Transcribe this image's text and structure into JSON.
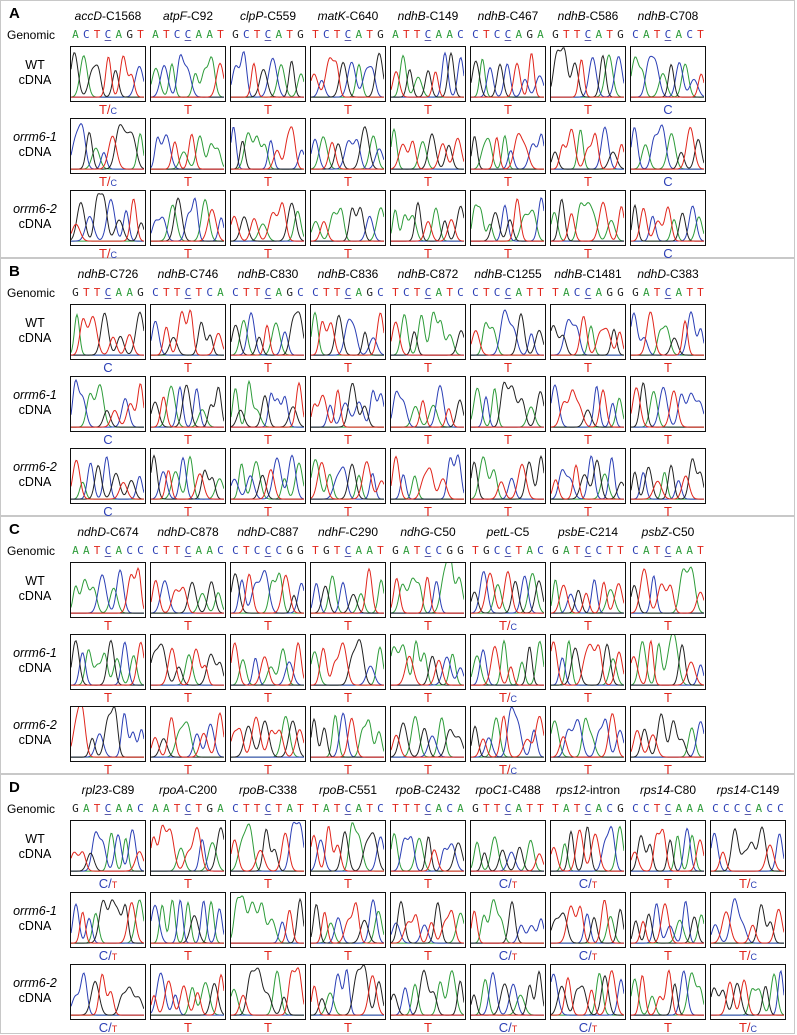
{
  "panels": [
    {
      "letter": "A",
      "genomic_label": "Genomic",
      "columns": [
        {
          "gene": "accD",
          "site": "-C1568",
          "genomic": [
            "A",
            "C",
            "T",
            "C",
            "A",
            "G",
            "T"
          ]
        },
        {
          "gene": "atpF",
          "site": "-C92",
          "genomic": [
            "A",
            "T",
            "C",
            "C",
            "A",
            "A",
            "T"
          ]
        },
        {
          "gene": "clpP",
          "site": "-C559",
          "genomic": [
            "G",
            "C",
            "T",
            "C",
            "A",
            "T",
            "G"
          ]
        },
        {
          "gene": "matK",
          "site": "-C640",
          "genomic": [
            "T",
            "C",
            "T",
            "C",
            "A",
            "T",
            "G"
          ]
        },
        {
          "gene": "ndhB",
          "site": "-C149",
          "genomic": [
            "A",
            "T",
            "T",
            "C",
            "A",
            "A",
            "C"
          ]
        },
        {
          "gene": "ndhB",
          "site": "-C467",
          "genomic": [
            "C",
            "T",
            "C",
            "C",
            "A",
            "G",
            "A"
          ]
        },
        {
          "gene": "ndhB",
          "site": "-C586",
          "genomic": [
            "G",
            "T",
            "T",
            "C",
            "A",
            "T",
            "G"
          ]
        },
        {
          "gene": "ndhB",
          "site": "-C708",
          "genomic": [
            "C",
            "A",
            "T",
            "C",
            "A",
            "C",
            "T"
          ]
        }
      ],
      "rows": [
        {
          "line": "WT",
          "sample": "cDNA",
          "calls": [
            "T/C",
            "T",
            "T",
            "T",
            "T",
            "T",
            "T",
            "C"
          ]
        },
        {
          "line": "orrm6-1",
          "sample": "cDNA",
          "calls": [
            "T/C",
            "T",
            "T",
            "T",
            "T",
            "T",
            "T",
            "C"
          ]
        },
        {
          "line": "orrm6-2",
          "sample": "cDNA",
          "calls": [
            "T/C",
            "T",
            "T",
            "T",
            "T",
            "T",
            "T",
            "C"
          ]
        }
      ]
    },
    {
      "letter": "B",
      "genomic_label": "Genomic",
      "columns": [
        {
          "gene": "ndhB",
          "site": "-C726",
          "genomic": [
            "G",
            "T",
            "T",
            "C",
            "A",
            "A",
            "G"
          ]
        },
        {
          "gene": "ndhB",
          "site": "-C746",
          "genomic": [
            "C",
            "T",
            "T",
            "C",
            "T",
            "C",
            "A"
          ]
        },
        {
          "gene": "ndhB",
          "site": "-C830",
          "genomic": [
            "C",
            "T",
            "T",
            "C",
            "A",
            "G",
            "C"
          ]
        },
        {
          "gene": "ndhB",
          "site": "-C836",
          "genomic": [
            "C",
            "T",
            "T",
            "C",
            "A",
            "G",
            "C"
          ]
        },
        {
          "gene": "ndhB",
          "site": "-C872",
          "genomic": [
            "T",
            "C",
            "T",
            "C",
            "A",
            "T",
            "C"
          ]
        },
        {
          "gene": "ndhB",
          "site": "-C1255",
          "genomic": [
            "C",
            "T",
            "C",
            "C",
            "A",
            "T",
            "T"
          ]
        },
        {
          "gene": "ndhB",
          "site": "-C1481",
          "genomic": [
            "T",
            "A",
            "C",
            "C",
            "A",
            "G",
            "G"
          ]
        },
        {
          "gene": "ndhD",
          "site": "-C383",
          "genomic": [
            "G",
            "A",
            "T",
            "C",
            "A",
            "T",
            "T"
          ]
        }
      ],
      "rows": [
        {
          "line": "WT",
          "sample": "cDNA",
          "calls": [
            "C",
            "T",
            "T",
            "T",
            "T",
            "T",
            "T",
            "T"
          ]
        },
        {
          "line": "orrm6-1",
          "sample": "cDNA",
          "calls": [
            "C",
            "T",
            "T",
            "T",
            "T",
            "T",
            "T",
            "T"
          ]
        },
        {
          "line": "orrm6-2",
          "sample": "cDNA",
          "calls": [
            "C",
            "T",
            "T",
            "T",
            "T",
            "T",
            "T",
            "T"
          ]
        }
      ]
    },
    {
      "letter": "C",
      "genomic_label": "Genomic",
      "columns": [
        {
          "gene": "ndhD",
          "site": "-C674",
          "genomic": [
            "A",
            "A",
            "T",
            "C",
            "A",
            "C",
            "C"
          ]
        },
        {
          "gene": "ndhD",
          "site": "-C878",
          "genomic": [
            "C",
            "T",
            "T",
            "C",
            "A",
            "A",
            "C"
          ]
        },
        {
          "gene": "ndhD",
          "site": "-C887",
          "genomic": [
            "C",
            "T",
            "C",
            "C",
            "C",
            "G",
            "G"
          ]
        },
        {
          "gene": "ndhF",
          "site": "-C290",
          "genomic": [
            "T",
            "G",
            "T",
            "C",
            "A",
            "A",
            "T"
          ]
        },
        {
          "gene": "ndhG",
          "site": "-C50",
          "genomic": [
            "G",
            "A",
            "T",
            "C",
            "C",
            "G",
            "G"
          ]
        },
        {
          "gene": "petL",
          "site": "-C5",
          "genomic": [
            "T",
            "G",
            "C",
            "C",
            "T",
            "A",
            "C"
          ]
        },
        {
          "gene": "psbE",
          "site": "-C214",
          "genomic": [
            "G",
            "A",
            "T",
            "C",
            "C",
            "T",
            "T"
          ]
        },
        {
          "gene": "psbZ",
          "site": "-C50",
          "genomic": [
            "C",
            "A",
            "T",
            "C",
            "A",
            "A",
            "T"
          ]
        }
      ],
      "rows": [
        {
          "line": "WT",
          "sample": "cDNA",
          "calls": [
            "T",
            "T",
            "T",
            "T",
            "T",
            "T/C",
            "T",
            "T"
          ]
        },
        {
          "line": "orrm6-1",
          "sample": "cDNA",
          "calls": [
            "T",
            "T",
            "T",
            "T",
            "T",
            "T/C",
            "T",
            "T"
          ]
        },
        {
          "line": "orrm6-2",
          "sample": "cDNA",
          "calls": [
            "T",
            "T",
            "T",
            "T",
            "T",
            "T/C",
            "T",
            "T"
          ]
        }
      ]
    },
    {
      "letter": "D",
      "genomic_label": "Genomic",
      "columns": [
        {
          "gene": "rpl23",
          "site": "-C89",
          "genomic": [
            "G",
            "A",
            "T",
            "C",
            "A",
            "A",
            "C"
          ]
        },
        {
          "gene": "rpoA",
          "site": "-C200",
          "genomic": [
            "A",
            "A",
            "T",
            "C",
            "T",
            "G",
            "A"
          ]
        },
        {
          "gene": "rpoB",
          "site": "-C338",
          "genomic": [
            "C",
            "T",
            "T",
            "C",
            "T",
            "A",
            "T"
          ]
        },
        {
          "gene": "rpoB",
          "site": "-C551",
          "genomic": [
            "T",
            "A",
            "T",
            "C",
            "A",
            "T",
            "C"
          ]
        },
        {
          "gene": "rpoB",
          "site": "-C2432",
          "genomic": [
            "T",
            "T",
            "T",
            "C",
            "A",
            "C",
            "A"
          ]
        },
        {
          "gene": "rpoC1",
          "site": "-C488",
          "genomic": [
            "G",
            "T",
            "T",
            "C",
            "A",
            "T",
            "T"
          ]
        },
        {
          "gene": "rps12",
          "site": "-intron",
          "genomic": [
            "T",
            "A",
            "T",
            "C",
            "A",
            "C",
            "G"
          ]
        },
        {
          "gene": "rps14",
          "site": "-C80",
          "genomic": [
            "C",
            "C",
            "T",
            "C",
            "A",
            "A",
            "A"
          ]
        },
        {
          "gene": "rps14",
          "site": "-C149",
          "genomic": [
            "C",
            "C",
            "C",
            "C",
            "A",
            "C",
            "C"
          ]
        }
      ],
      "rows": [
        {
          "line": "WT",
          "sample": "cDNA",
          "calls": [
            "C/T",
            "T",
            "T",
            "T",
            "T",
            "C/T",
            "C/T",
            "T",
            "T/C"
          ]
        },
        {
          "line": "orrm6-1",
          "sample": "cDNA",
          "calls": [
            "C/T",
            "T",
            "T",
            "T",
            "T",
            "C/T",
            "C/T",
            "T",
            "T/C"
          ]
        },
        {
          "line": "orrm6-2",
          "sample": "cDNA",
          "calls": [
            "C/T",
            "T",
            "T",
            "T",
            "T",
            "C/T",
            "C/T",
            "T",
            "T/C"
          ]
        }
      ]
    }
  ]
}
